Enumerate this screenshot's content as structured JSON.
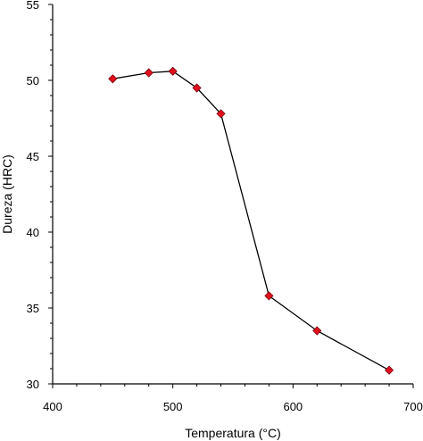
{
  "chart_data": {
    "type": "line",
    "title": "",
    "xlabel": "Temperatura (°C)",
    "ylabel": "Dureza (HRC)",
    "xlim": [
      400,
      700
    ],
    "ylim": [
      30,
      55
    ],
    "x_ticks": [
      400,
      500,
      600,
      700
    ],
    "y_ticks": [
      30,
      35,
      40,
      45,
      50,
      55
    ],
    "grid": false,
    "legend": "none",
    "series": [
      {
        "x": [
          450,
          480,
          500,
          520,
          540,
          580,
          620,
          680
        ],
        "y": [
          50.1,
          50.5,
          50.6,
          49.5,
          47.8,
          35.8,
          33.5,
          30.9
        ],
        "line_color": "#000000",
        "marker": "diamond",
        "marker_color": "#e0101e",
        "marker_edge": "#7a0008"
      }
    ]
  }
}
